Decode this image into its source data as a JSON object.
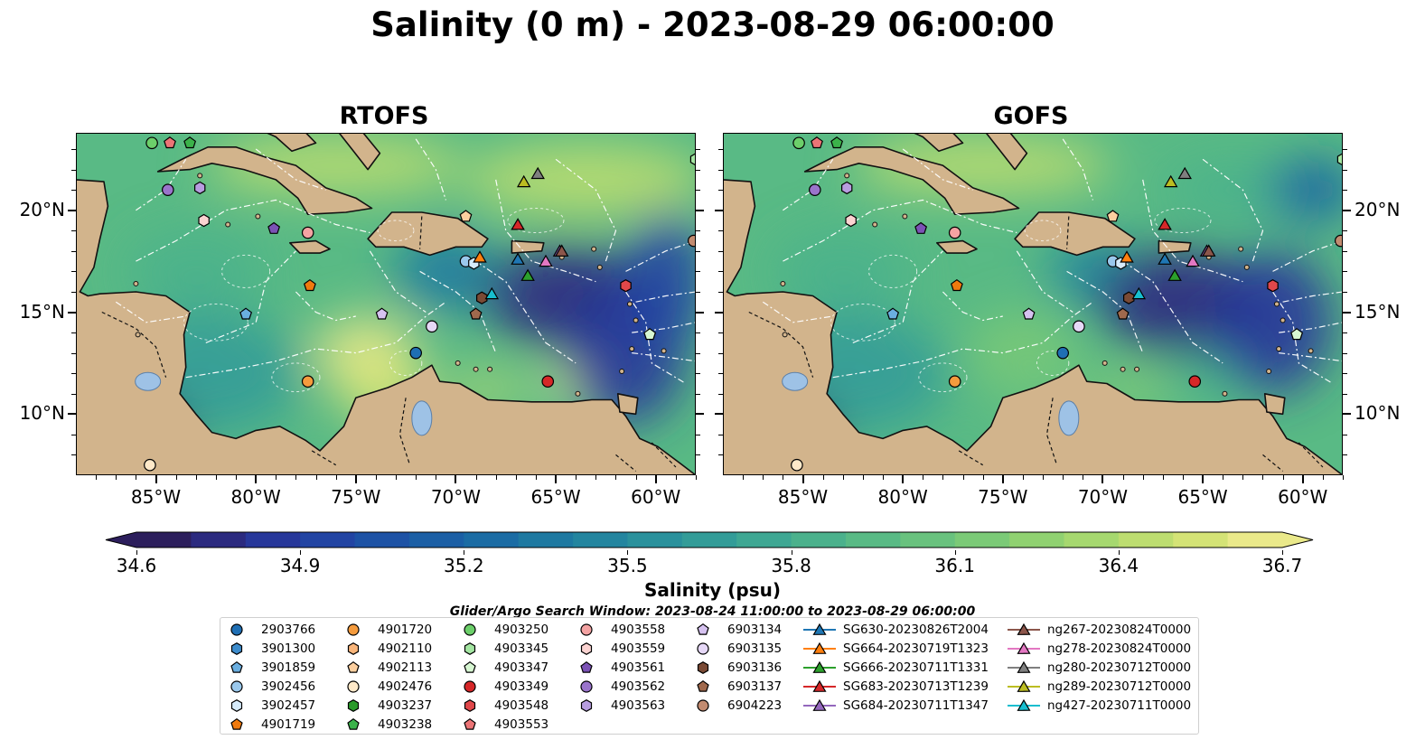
{
  "title": "Salinity (0 m) - 2023-08-29 06:00:00",
  "panels": [
    {
      "title": "RTOFS",
      "y_label_side": "left"
    },
    {
      "title": "GOFS",
      "y_label_side": "right"
    }
  ],
  "map": {
    "lon_ticks": [
      "85°W",
      "80°W",
      "75°W",
      "70°W",
      "65°W",
      "60°W"
    ],
    "lat_ticks": [
      "20°N",
      "15°N",
      "10°N"
    ],
    "colors": {
      "land": "#d2b48c",
      "water_body": "#9ec2e6",
      "river": "#a6bddb"
    }
  },
  "colorbar": {
    "label": "Salinity (psu)",
    "ticks": [
      "34.6",
      "34.9",
      "35.2",
      "35.5",
      "35.8",
      "36.1",
      "36.4",
      "36.7"
    ],
    "range": [
      34.6,
      36.7
    ],
    "step": 0.1,
    "extend": "both",
    "colors": [
      "#2c1e5c",
      "#2b2a7f",
      "#27379a",
      "#2244a3",
      "#1d52a5",
      "#1b5fa5",
      "#1b6ca4",
      "#1e79a1",
      "#23859f",
      "#2a919c",
      "#339c98",
      "#3ea793",
      "#4bb18c",
      "#59ba85",
      "#69c27e",
      "#7bca77",
      "#90d171",
      "#a6d86f",
      "#bddd70",
      "#d4e376",
      "#eae98a"
    ]
  },
  "search_window_note": "Glider/Argo Search Window: 2023-08-24 11:00:00 to 2023-08-29 06:00:00",
  "legend": {
    "columns": [
      [
        {
          "label": "2903766",
          "marker": "circle",
          "color": "#1f6fb4"
        },
        {
          "label": "3901300",
          "marker": "hexagon",
          "color": "#3d8ccc"
        },
        {
          "label": "3901859",
          "marker": "pentagon",
          "color": "#6aaee0"
        },
        {
          "label": "3902456",
          "marker": "circle",
          "color": "#9ac8ec"
        },
        {
          "label": "3902457",
          "marker": "hexagon",
          "color": "#d6ebfb"
        },
        {
          "label": "4901719",
          "marker": "pentagon",
          "color": "#f07a0e"
        }
      ],
      [
        {
          "label": "4901720",
          "marker": "circle",
          "color": "#f59b3d"
        },
        {
          "label": "4902110",
          "marker": "hexagon",
          "color": "#f9b57a"
        },
        {
          "label": "4902113",
          "marker": "pentagon",
          "color": "#fccf9f"
        },
        {
          "label": "4902476",
          "marker": "circle",
          "color": "#ffe9c9"
        },
        {
          "label": "4903237",
          "marker": "hexagon",
          "color": "#2a9a2a"
        },
        {
          "label": "4903238",
          "marker": "pentagon",
          "color": "#3bb24a"
        }
      ],
      [
        {
          "label": "4903250",
          "marker": "circle",
          "color": "#6ccf6a"
        },
        {
          "label": "4903345",
          "marker": "hexagon",
          "color": "#a4e6a2"
        },
        {
          "label": "4903347",
          "marker": "pentagon",
          "color": "#d7f7d2"
        },
        {
          "label": "4903349",
          "marker": "circle",
          "color": "#d62728"
        },
        {
          "label": "4903548",
          "marker": "hexagon",
          "color": "#e0474a"
        },
        {
          "label": "4903553",
          "marker": "pentagon",
          "color": "#ec7476"
        }
      ],
      [
        {
          "label": "4903558",
          "marker": "circle",
          "color": "#f4a3a3"
        },
        {
          "label": "4903559",
          "marker": "hexagon",
          "color": "#fbd3d1"
        },
        {
          "label": "4903561",
          "marker": "pentagon",
          "color": "#7b52b5"
        },
        {
          "label": "4903562",
          "marker": "circle",
          "color": "#9a74cb"
        },
        {
          "label": "4903563",
          "marker": "hexagon",
          "color": "#b89de0"
        }
      ],
      [
        {
          "label": "6903134",
          "marker": "pentagon",
          "color": "#d6c2f0"
        },
        {
          "label": "6903135",
          "marker": "circle",
          "color": "#e6d8f7"
        },
        {
          "label": "6903136",
          "marker": "hexagon",
          "color": "#7a4a35"
        },
        {
          "label": "6903137",
          "marker": "pentagon",
          "color": "#a0694d"
        },
        {
          "label": "6904223",
          "marker": "circle",
          "color": "#c28b70"
        }
      ],
      [
        {
          "label": "SG630-20230826T2004",
          "marker": "triangle",
          "color": "#1f77b4"
        },
        {
          "label": "SG664-20230719T1323",
          "marker": "triangle",
          "color": "#ff7f0e"
        },
        {
          "label": "SG666-20230711T1331",
          "marker": "triangle",
          "color": "#2ca02c"
        },
        {
          "label": "SG683-20230713T1239",
          "marker": "triangle",
          "color": "#d62728"
        },
        {
          "label": "SG684-20230711T1347",
          "marker": "triangle",
          "color": "#9467bd"
        }
      ],
      [
        {
          "label": "ng267-20230824T0000",
          "marker": "triangle",
          "color": "#8c564b"
        },
        {
          "label": "ng278-20230824T0000",
          "marker": "triangle",
          "color": "#e377c2"
        },
        {
          "label": "ng280-20230712T0000",
          "marker": "triangle",
          "color": "#7f7f7f"
        },
        {
          "label": "ng289-20230712T0000",
          "marker": "triangle",
          "color": "#bcbd22"
        },
        {
          "label": "ng427-20230711T0000",
          "marker": "triangle",
          "color": "#17becf"
        }
      ]
    ]
  },
  "markers_on_map": [
    {
      "id": "4903250",
      "lon": -85.2,
      "lat": 23.3
    },
    {
      "id": "4903553",
      "lon": -84.3,
      "lat": 23.3
    },
    {
      "id": "4903238",
      "lon": -83.3,
      "lat": 23.3
    },
    {
      "id": "4903562",
      "lon": -84.4,
      "lat": 21.0
    },
    {
      "id": "4903563",
      "lon": -82.8,
      "lat": 21.1
    },
    {
      "id": "4903559",
      "lon": -82.6,
      "lat": 19.5
    },
    {
      "id": "4903561",
      "lon": -79.1,
      "lat": 19.1
    },
    {
      "id": "4903558",
      "lon": -77.4,
      "lat": 18.9
    },
    {
      "id": "4901719",
      "lon": -77.3,
      "lat": 16.3
    },
    {
      "id": "3901859",
      "lon": -80.5,
      "lat": 14.9
    },
    {
      "id": "6903134",
      "lon": -73.7,
      "lat": 14.9
    },
    {
      "id": "6903135",
      "lon": -71.2,
      "lat": 14.3
    },
    {
      "id": "2903766",
      "lon": -72.0,
      "lat": 13.0
    },
    {
      "id": "4901720",
      "lon": -77.4,
      "lat": 11.6
    },
    {
      "id": "4902476",
      "lon": -85.3,
      "lat": 7.5
    },
    {
      "id": "4902113",
      "lon": -69.5,
      "lat": 19.7
    },
    {
      "id": "3902456",
      "lon": -69.5,
      "lat": 17.5
    },
    {
      "id": "3902457",
      "lon": -69.1,
      "lat": 17.4
    },
    {
      "id": "SG664-20230719T1323",
      "lon": -68.8,
      "lat": 17.7
    },
    {
      "id": "6903136",
      "lon": -68.7,
      "lat": 15.7
    },
    {
      "id": "6903137",
      "lon": -69.0,
      "lat": 14.9
    },
    {
      "id": "ng427-20230711T0000",
      "lon": -68.2,
      "lat": 15.9
    },
    {
      "id": "ng289-20230712T0000",
      "lon": -66.6,
      "lat": 21.4
    },
    {
      "id": "ng280-20230712T0000",
      "lon": -65.9,
      "lat": 21.8
    },
    {
      "id": "SG683-20230713T1239",
      "lon": -66.9,
      "lat": 19.3
    },
    {
      "id": "SG630-20230826T2004",
      "lon": -66.9,
      "lat": 17.6
    },
    {
      "id": "SG666-20230711T1331",
      "lon": -66.4,
      "lat": 16.8
    },
    {
      "id": "ng278-20230824T0000",
      "lon": -65.5,
      "lat": 17.5
    },
    {
      "id": "SG684-20230711T1347",
      "lon": -64.8,
      "lat": 18.0
    },
    {
      "id": "ng267-20230824T0000",
      "lon": -64.7,
      "lat": 18.0
    },
    {
      "id": "4903349",
      "lon": -65.4,
      "lat": 11.6
    },
    {
      "id": "4903347",
      "lon": -60.3,
      "lat": 13.9
    },
    {
      "id": "4903548",
      "lon": -61.5,
      "lat": 16.3
    },
    {
      "id": "6904223",
      "lon": -58.1,
      "lat": 18.5
    },
    {
      "id": "4903345",
      "lon": -58.0,
      "lat": 22.5
    }
  ]
}
